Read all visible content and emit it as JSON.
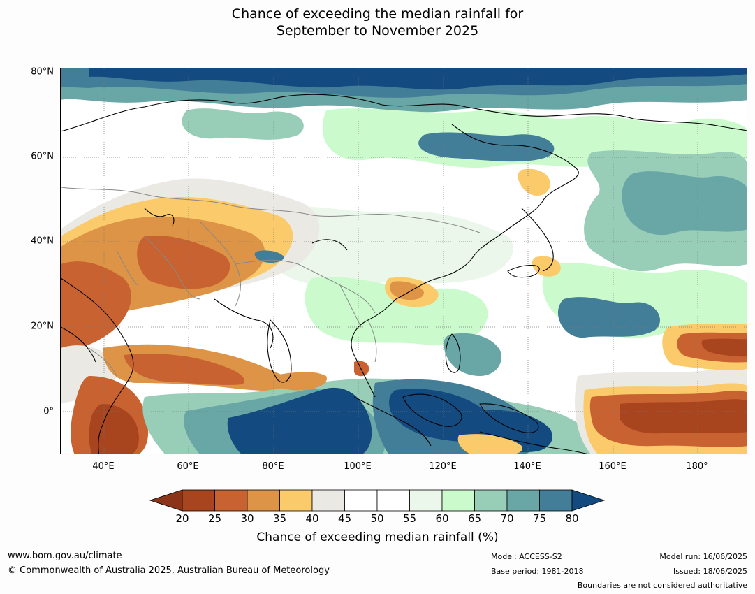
{
  "title": {
    "line1": "Chance of exceeding the median rainfall for",
    "line2": "September to November 2025"
  },
  "map": {
    "lat_labels": [
      "80°N",
      "60°N",
      "40°N",
      "20°N",
      "0°"
    ],
    "lon_labels": [
      "40°E",
      "60°E",
      "80°E",
      "100°E",
      "120°E",
      "140°E",
      "160°E",
      "180°"
    ],
    "colors": {
      "c20_25": "#a8451f",
      "c25_30": "#c86331",
      "c30_35": "#de9446",
      "c35_40": "#fbca6b",
      "c40_45": "#ebe9e4",
      "c45_55": "#ffffff",
      "c55_60": "#eaf7ea",
      "c60_65": "#cbfbcc",
      "c65_70": "#98cdb7",
      "c70_75": "#69a6a6",
      "c75_80": "#437e98",
      "c80": "#134a80",
      "c_under": "#8c3417",
      "c_dark_brown": "#8b3a1c"
    }
  },
  "colorbar": {
    "ticks": [
      "20",
      "25",
      "30",
      "35",
      "40",
      "45",
      "50",
      "55",
      "60",
      "65",
      "70",
      "75",
      "80"
    ],
    "label": "Chance of exceeding median rainfall (%)"
  },
  "footer": {
    "website": "www.bom.gov.au/climate",
    "copyright": "© Commonwealth of Australia 2025, Australian Bureau of Meteorology",
    "model": "Model: ACCESS-S2",
    "base_period": "Base period: 1981-2018",
    "model_run": "Model run: 16/06/2025",
    "issued": "Issued: 18/06/2025",
    "disclaimer": "Boundaries are not considered authoritative"
  }
}
